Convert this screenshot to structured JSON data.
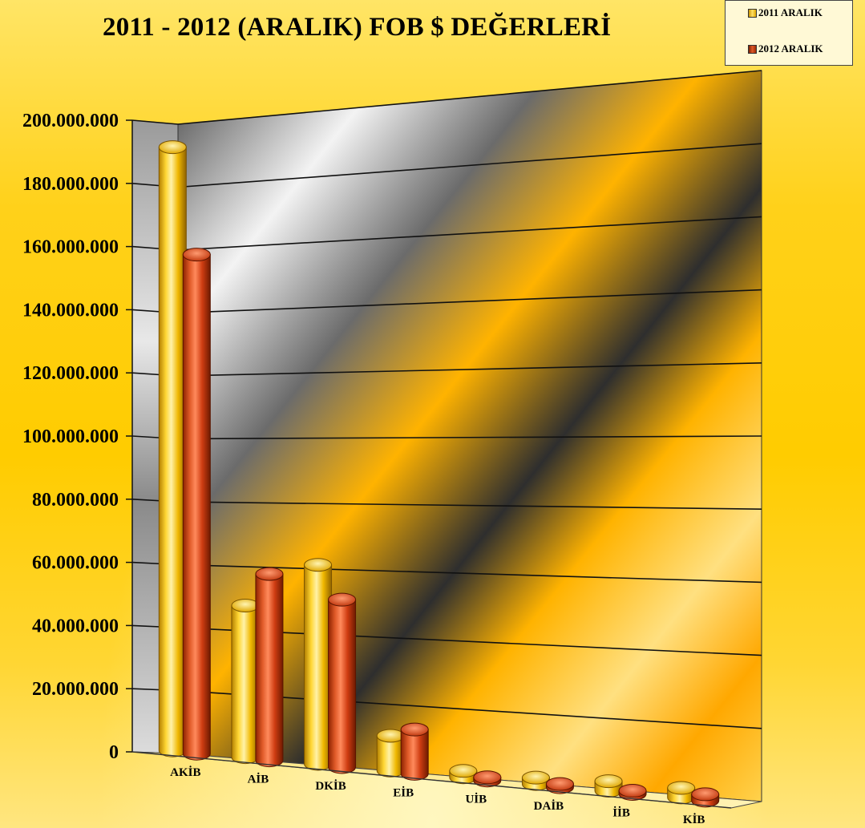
{
  "title": "2011 - 2012 (ARALIK) FOB $ DEĞERLERİ",
  "colors": {
    "series_2011": "#f5c000",
    "series_2012": "#d9441a"
  },
  "chart_data": {
    "type": "bar",
    "title": "2011 - 2012 (ARALIK) FOB $ DEĞERLERİ",
    "categories": [
      "AKİB",
      "AİB",
      "DKİB",
      "EİB",
      "UİB",
      "DAİB",
      "İİB",
      "KİB"
    ],
    "series": [
      {
        "name": "2011 ARALIK",
        "values": [
          191000000,
          48000000,
          63000000,
          11000000,
          2000000,
          2000000,
          3000000,
          3000000
        ]
      },
      {
        "name": "2012 ARALIK",
        "values": [
          158000000,
          59000000,
          53000000,
          14000000,
          1000000,
          1000000,
          1000000,
          2000000
        ]
      }
    ],
    "yticks": [
      "0",
      "20.000.000",
      "40.000.000",
      "60.000.000",
      "80.000.000",
      "100.000.000",
      "120.000.000",
      "140.000.000",
      "160.000.000",
      "180.000.000",
      "200.000.000"
    ],
    "ylim": [
      0,
      200000000
    ],
    "grid": true,
    "legend": "top-right"
  },
  "legend": {
    "items": [
      {
        "label": "2011 ARALIK"
      },
      {
        "label": "2012 ARALIK"
      }
    ]
  }
}
